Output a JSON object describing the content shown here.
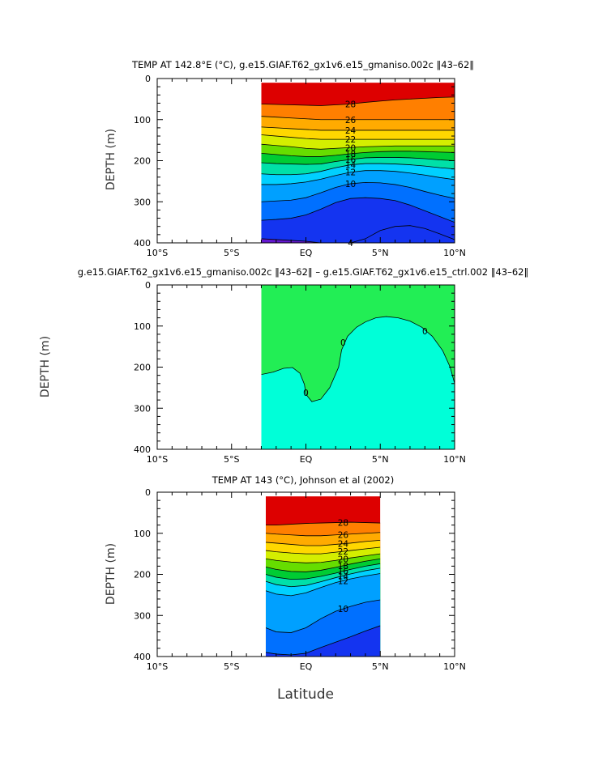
{
  "figure": {
    "xlabel": "Latitude",
    "ylabel": "DEPTH (m)"
  },
  "chart_data": [
    {
      "type": "heatmap",
      "title": "TEMP AT 142.8°E (°C), g.e15.GIAF.T62_gx1v6.e15_gmaniso.002c ‖43–62‖",
      "ylabel": "DEPTH (m)",
      "x_ticks": [
        "10°S",
        "5°S",
        "EQ",
        "5°N",
        "10°N"
      ],
      "y_ticks": [
        "0",
        "100",
        "200",
        "300",
        "400"
      ],
      "x_range_deg": [
        -10,
        10
      ],
      "y_range_m": [
        0,
        400
      ],
      "y_inverted": true,
      "data_extent": {
        "lat": [
          -3,
          10
        ],
        "depth_m": [
          10,
          400
        ]
      },
      "levels_degC": [
        4,
        6,
        8,
        10,
        12,
        14,
        16,
        18,
        20,
        22,
        24,
        26,
        28,
        30
      ],
      "isotherm_depth_m_at_lat": {
        "lat": [
          -3,
          -2,
          -1,
          0,
          1,
          2,
          3,
          4,
          5,
          6,
          7,
          8,
          9,
          10
        ],
        "28": [
          62,
          63,
          64,
          65,
          66,
          64,
          62,
          58,
          55,
          52,
          50,
          48,
          46,
          45
        ],
        "26": [
          92,
          94,
          96,
          98,
          100,
          100,
          100,
          100,
          100,
          100,
          100,
          100,
          100,
          100
        ],
        "24": [
          118,
          120,
          122,
          124,
          126,
          126,
          126,
          126,
          126,
          126,
          126,
          126,
          126,
          126
        ],
        "22": [
          137,
          140,
          143,
          146,
          148,
          148,
          148,
          148,
          148,
          148,
          148,
          148,
          148,
          148
        ],
        "20": [
          160,
          163,
          166,
          170,
          172,
          170,
          168,
          166,
          165,
          164,
          164,
          164,
          164,
          164
        ],
        "18": [
          182,
          185,
          188,
          190,
          190,
          187,
          183,
          180,
          178,
          177,
          177,
          178,
          179,
          180
        ],
        "16": [
          205,
          207,
          208,
          209,
          208,
          202,
          197,
          193,
          192,
          192,
          193,
          195,
          198,
          200
        ],
        "14": [
          232,
          234,
          234,
          232,
          226,
          217,
          210,
          207,
          207,
          208,
          210,
          213,
          217,
          220
        ],
        "12": [
          258,
          258,
          256,
          252,
          245,
          236,
          228,
          224,
          224,
          226,
          230,
          235,
          241,
          246
        ],
        "10": [
          300,
          298,
          296,
          290,
          278,
          265,
          256,
          253,
          254,
          258,
          265,
          275,
          284,
          292
        ],
        "8": [
          345,
          343,
          340,
          332,
          318,
          302,
          292,
          290,
          292,
          297,
          308,
          322,
          336,
          350
        ],
        "6": [
          390,
          392,
          394,
          396,
          400,
          400,
          400,
          400,
          400,
          400,
          400,
          400,
          400,
          400
        ],
        "4": [
          400,
          400,
          400,
          400,
          400,
          400,
          400,
          390,
          370,
          360,
          358,
          365,
          378,
          392
        ]
      },
      "contour_labels": [
        "28",
        "26",
        "24",
        "22",
        "20",
        "18",
        "16",
        "14",
        "12",
        "10",
        "4"
      ]
    },
    {
      "type": "heatmap",
      "title": "g.e15.GIAF.T62_gx1v6.e15_gmaniso.002c ‖43–62‖ – g.e15.GIAF.T62_gx1v6.e15_ctrl.002 ‖43–62‖",
      "ylabel": "DEPTH (m)",
      "x_ticks": [
        "10°S",
        "5°S",
        "EQ",
        "5°N",
        "10°N"
      ],
      "y_ticks": [
        "0",
        "100",
        "200",
        "300",
        "400"
      ],
      "x_range_deg": [
        -10,
        10
      ],
      "y_range_m": [
        0,
        400
      ],
      "y_inverted": true,
      "data_extent": {
        "lat": [
          -3,
          10
        ],
        "depth_m": [
          0,
          400
        ]
      },
      "zero_contour": {
        "lat": [
          -3,
          -2.2,
          -1.5,
          -0.9,
          -0.4,
          -0.1,
          0.0,
          0.4,
          1.0,
          1.6,
          2.2,
          2.4,
          2.8,
          3.4,
          4.0,
          4.7,
          5.4,
          6.2,
          7.0,
          7.8,
          8.5,
          9.2,
          9.7,
          10.0
        ],
        "depth_m": [
          218,
          212,
          203,
          201,
          215,
          242,
          266,
          284,
          278,
          250,
          200,
          158,
          125,
          103,
          90,
          80,
          77,
          80,
          88,
          103,
          125,
          160,
          200,
          240
        ],
        "label": "0"
      },
      "extra_labels": [
        "0",
        "0"
      ],
      "positive_color": "#22ee55",
      "negative_color": "#00ffd8"
    },
    {
      "type": "heatmap",
      "title": "TEMP AT 143 (°C), Johnson et al (2002)",
      "ylabel": "DEPTH (m)",
      "xlabel": "Latitude",
      "x_ticks": [
        "10°S",
        "5°S",
        "EQ",
        "5°N",
        "10°N"
      ],
      "y_ticks": [
        "0",
        "100",
        "200",
        "300",
        "400"
      ],
      "x_range_deg": [
        -10,
        10
      ],
      "y_range_m": [
        0,
        400
      ],
      "y_inverted": true,
      "data_extent": {
        "lat": [
          -2.7,
          5
        ],
        "depth_m": [
          10,
          400
        ]
      },
      "levels_degC": [
        6,
        8,
        10,
        12,
        14,
        16,
        18,
        20,
        22,
        24,
        26,
        28,
        30
      ],
      "isotherm_depth_m_at_lat": {
        "lat": [
          -2.7,
          -2,
          -1,
          0,
          1,
          2,
          3,
          4,
          5
        ],
        "28": [
          80,
          80,
          78,
          76,
          75,
          74,
          73,
          74,
          75
        ],
        "26": [
          100,
          102,
          104,
          106,
          106,
          104,
          102,
          100,
          98
        ],
        "24": [
          122,
          124,
          127,
          130,
          130,
          127,
          124,
          120,
          117
        ],
        "22": [
          142,
          145,
          148,
          150,
          150,
          146,
          142,
          138,
          134
        ],
        "20": [
          162,
          166,
          170,
          172,
          171,
          166,
          160,
          155,
          150
        ],
        "18": [
          182,
          188,
          193,
          194,
          190,
          183,
          175,
          168,
          162
        ],
        "16": [
          200,
          207,
          212,
          211,
          205,
          197,
          188,
          180,
          174
        ],
        "14": [
          217,
          225,
          230,
          227,
          218,
          208,
          199,
          191,
          185
        ],
        "12": [
          240,
          248,
          252,
          245,
          232,
          220,
          211,
          204,
          198
        ],
        "10": [
          330,
          340,
          342,
          330,
          308,
          290,
          278,
          268,
          262
        ],
        "8": [
          390,
          394,
          396,
          392,
          378,
          365,
          352,
          338,
          325
        ]
      },
      "contour_labels": [
        "28",
        "26",
        "24",
        "22",
        "20",
        "18",
        "16",
        "14",
        "12",
        "10"
      ]
    }
  ]
}
